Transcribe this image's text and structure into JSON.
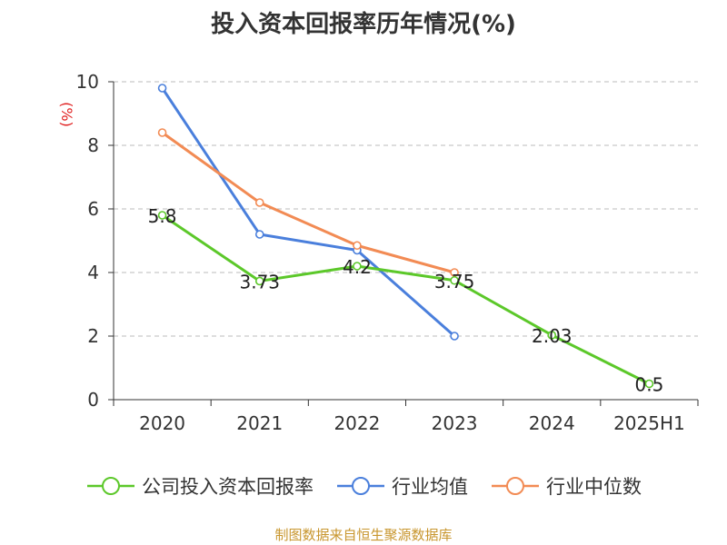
{
  "chart_data": {
    "type": "line",
    "title": "投入资本回报率历年情况(%)",
    "ylabel": "(%)",
    "xlabel": "",
    "categories": [
      "2020",
      "2021",
      "2022",
      "2023",
      "2024",
      "2025H1"
    ],
    "ylim": [
      0,
      10
    ],
    "yticks": [
      0,
      2,
      4,
      6,
      8,
      10
    ],
    "grid": true,
    "legend_position": "bottom",
    "series": [
      {
        "name": "公司投入资本回报率",
        "color": "#5cc82a",
        "values": [
          5.8,
          3.73,
          4.2,
          3.75,
          2.03,
          0.5
        ],
        "labels": [
          "5.8",
          "3.73",
          "4.2",
          "3.75",
          "2.03",
          "0.5"
        ]
      },
      {
        "name": "行业均值",
        "color": "#4a7fdc",
        "values": [
          9.8,
          5.2,
          4.7,
          2.0,
          null,
          null
        ]
      },
      {
        "name": "行业中位数",
        "color": "#f28b54",
        "values": [
          8.4,
          6.2,
          4.85,
          4.0,
          null,
          null
        ]
      }
    ]
  },
  "source": "制图数据来自恒生聚源数据库"
}
